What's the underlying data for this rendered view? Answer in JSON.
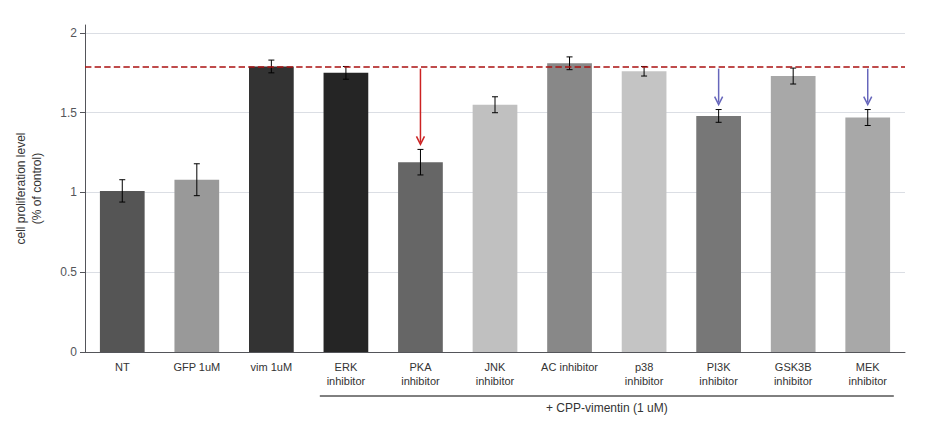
{
  "chart_data": {
    "type": "bar",
    "categories": [
      "NT",
      "GFP 1uM",
      "vim 1uM",
      "ERK\ninhibitor",
      "PKA\ninhibitor",
      "JNK\ninhibitor",
      "AC inhibitor",
      "p38\ninhibitor",
      "PI3K\ninhibitor",
      "GSK3B\ninhibitor",
      "MEK\ninhibitor"
    ],
    "values": [
      1.01,
      1.08,
      1.79,
      1.75,
      1.19,
      1.55,
      1.81,
      1.76,
      1.48,
      1.73,
      1.47
    ],
    "errors": [
      0.07,
      0.1,
      0.04,
      0.04,
      0.08,
      0.05,
      0.04,
      0.03,
      0.04,
      0.05,
      0.05
    ],
    "colors": [
      "#555555",
      "#999999",
      "#333333",
      "#252525",
      "#666666",
      "#c0c0c0",
      "#888888",
      "#c4c4c4",
      "#777777",
      "#a8a8a8",
      "#a8a8a8"
    ],
    "ylabel": "cell proliferation level\n(% of control)",
    "ylim": [
      0,
      2.05
    ],
    "yticks": [
      0,
      0.5,
      1,
      1.5,
      2
    ],
    "grid": true,
    "reference_line": {
      "y": 1.795,
      "color": "#aa1111",
      "line_style": "dashed"
    },
    "arrows": [
      {
        "category": "PKA\ninhibitor",
        "color": "#cc2222"
      },
      {
        "category": "PI3K\ninhibitor",
        "color": "#6666bb"
      },
      {
        "category": "MEK\ninhibitor",
        "color": "#6666bb"
      }
    ],
    "bracket": {
      "label": "+ CPP-vimentin (1 uM)",
      "from": "ERK\ninhibitor",
      "to": "MEK\ninhibitor"
    }
  }
}
